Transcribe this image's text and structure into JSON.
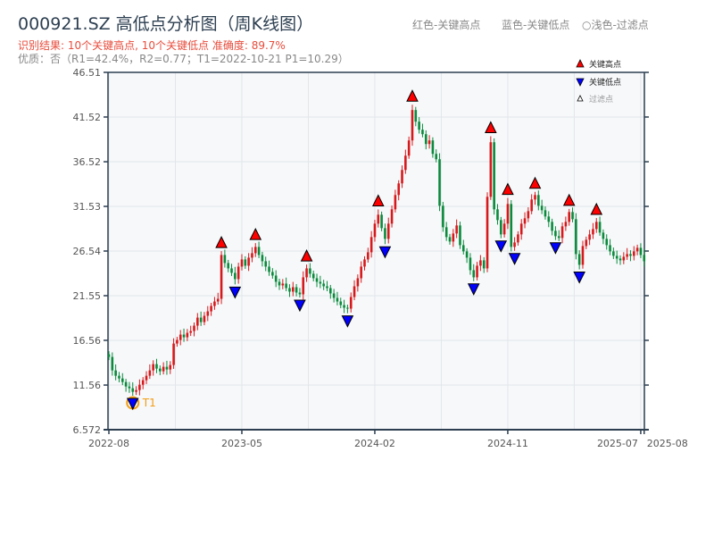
{
  "header": {
    "title": "000921.SZ 高低点分析图（周K线图）",
    "result": "识别结果: 10个关键高点, 10个关键低点   准确度: 89.7%",
    "quality": "优质：否（R1=42.4%，R2=0.77；T1=2022-10-21 P1=10.29）",
    "legend_top": [
      "红色-关键高点",
      "蓝色-关键低点",
      "○浅色-过滤点"
    ]
  },
  "colors": {
    "up": "#d7191c",
    "down": "#0b8a3c",
    "high_marker": "#ff0000",
    "low_marker": "#0000ff",
    "t1": "#f39c12",
    "plot_bg": "#f6f8fa",
    "axis": "#2c3e50"
  },
  "chart_data": {
    "type": "candlestick",
    "interval": "weekly",
    "ylim": [
      6.572,
      46.51
    ],
    "yticks": [
      "6.572",
      "11.56",
      "16.56",
      "21.55",
      "26.54",
      "31.53",
      "36.52",
      "41.52",
      "46.51"
    ],
    "xticks": [
      {
        "label": "2022-08",
        "week": 0
      },
      {
        "label": "2023-05",
        "week": 39
      },
      {
        "label": "2024-02",
        "week": 78
      },
      {
        "label": "2024-11",
        "week": 117
      },
      {
        "label": "2025-07",
        "week": 156
      },
      {
        "label": "2025-08",
        "week": 157
      }
    ],
    "grid": true,
    "closes": [
      14.7,
      13.2,
      12.6,
      12.3,
      11.9,
      11.4,
      11.2,
      10.8,
      11.0,
      11.6,
      12.1,
      12.6,
      13.2,
      13.9,
      13.4,
      13.1,
      13.6,
      13.3,
      13.8,
      16.2,
      16.6,
      17.2,
      16.9,
      17.4,
      17.6,
      18.2,
      19.1,
      18.6,
      19.3,
      19.8,
      20.4,
      20.9,
      21.2,
      26.1,
      25.2,
      24.6,
      24.1,
      23.4,
      24.8,
      25.6,
      24.9,
      25.8,
      26.3,
      27.0,
      26.1,
      25.4,
      24.8,
      24.2,
      23.8,
      23.1,
      22.7,
      22.9,
      22.4,
      22.0,
      22.5,
      21.9,
      21.7,
      23.6,
      24.6,
      24.0,
      23.5,
      23.1,
      22.9,
      22.6,
      22.4,
      21.8,
      21.3,
      20.9,
      20.5,
      20.2,
      20.1,
      21.4,
      22.6,
      23.5,
      24.8,
      25.6,
      26.4,
      28.1,
      29.6,
      30.6,
      29.1,
      27.9,
      29.6,
      31.2,
      32.8,
      34.1,
      35.6,
      37.2,
      38.9,
      42.3,
      41.0,
      40.1,
      39.6,
      38.5,
      38.9,
      37.4,
      36.8,
      31.6,
      29.2,
      28.1,
      27.6,
      28.5,
      29.4,
      27.2,
      26.5,
      25.8,
      24.4,
      23.6,
      24.9,
      25.5,
      24.6,
      32.6,
      38.7,
      31.2,
      30.0,
      28.4,
      29.6,
      31.8,
      27.0,
      27.5,
      28.4,
      29.6,
      30.2,
      31.0,
      32.3,
      32.8,
      31.6,
      31.1,
      30.4,
      29.8,
      28.8,
      28.2,
      28.0,
      29.3,
      29.8,
      30.9,
      30.1,
      26.2,
      25.0,
      27.1,
      27.8,
      28.4,
      29.0,
      29.8,
      28.6,
      27.9,
      27.2,
      26.5,
      26.0,
      25.7,
      25.5,
      25.9,
      26.2,
      26.0,
      26.5,
      26.9,
      26.1,
      25.4
    ],
    "key_highs": [
      33,
      43,
      58,
      79,
      89,
      112,
      117,
      125,
      135,
      143
    ],
    "key_lows": [
      7,
      37,
      56,
      70,
      81,
      107,
      115,
      119,
      131,
      138
    ],
    "t1": {
      "label": "T1",
      "week": 7,
      "date": "2022-10-21",
      "price": 10.29
    },
    "legend": {
      "placement": "top-right",
      "entries": [
        "关键高点",
        "关键低点",
        "过滤点"
      ]
    }
  }
}
